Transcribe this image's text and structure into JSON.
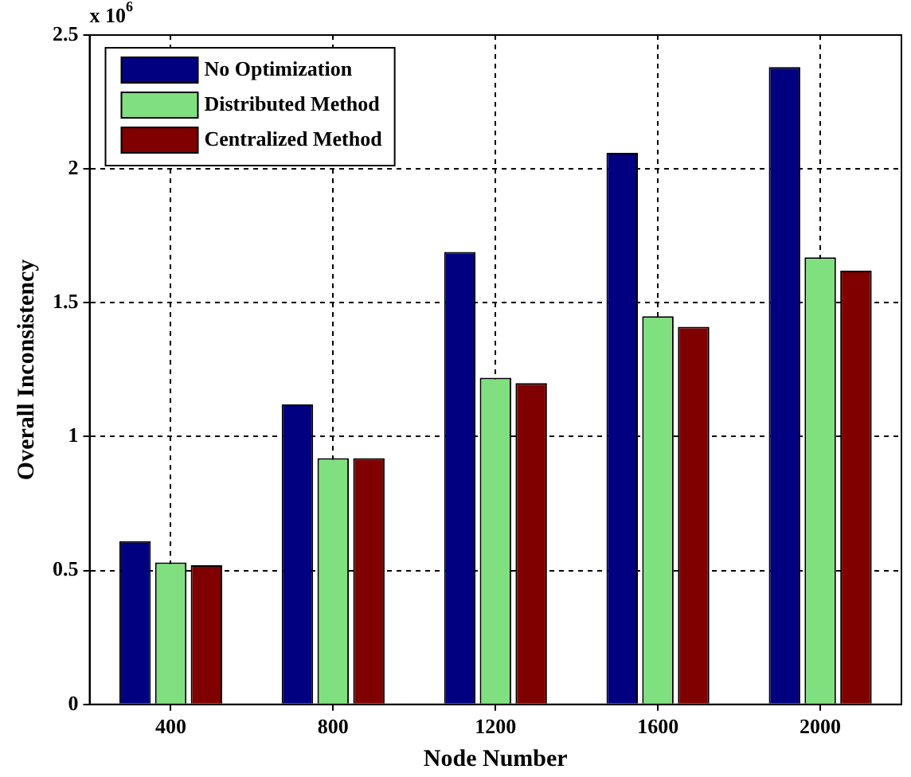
{
  "chart_data": {
    "type": "bar",
    "xlabel": "Node Number",
    "ylabel": "Overall Inconsistency",
    "categories": [
      "400",
      "800",
      "1200",
      "1600",
      "2000"
    ],
    "series": [
      {
        "name": "No Optimization",
        "color": "#000080",
        "values": [
          0.61,
          1.12,
          1.69,
          2.06,
          2.38
        ]
      },
      {
        "name": "Distributed Method",
        "color": "#80e080",
        "values": [
          0.53,
          0.92,
          1.22,
          1.45,
          1.67
        ]
      },
      {
        "name": "Centralized Method",
        "color": "#800000",
        "values": [
          0.52,
          0.92,
          1.2,
          1.41,
          1.62
        ]
      }
    ],
    "ylim": [
      0,
      2.5
    ],
    "yticks": [
      0,
      0.5,
      1,
      1.5,
      2,
      2.5
    ],
    "grid": true,
    "legend": "top left",
    "annotations": [
      "x 10$^{6}$"
    ]
  }
}
